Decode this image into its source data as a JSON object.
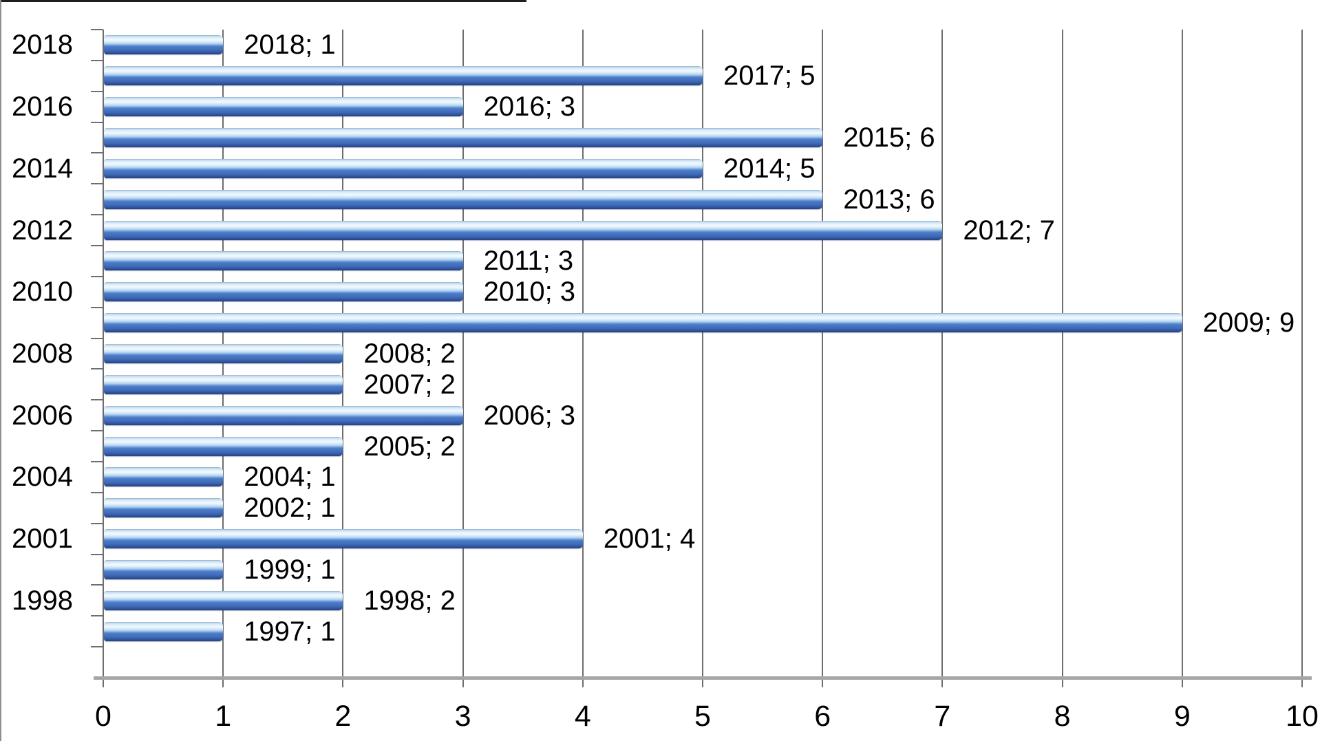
{
  "chart_data": {
    "type": "bar",
    "orientation": "horizontal",
    "title": "",
    "xlabel": "",
    "ylabel": "",
    "categories": [
      "2018",
      "2017",
      "2016",
      "2015",
      "2014",
      "2013",
      "2012",
      "2011",
      "2010",
      "2009",
      "2008",
      "2007",
      "2006",
      "2005",
      "2004",
      "2002",
      "2001",
      "1999",
      "1998",
      "1997"
    ],
    "values": [
      1,
      5,
      3,
      6,
      5,
      6,
      7,
      3,
      3,
      9,
      2,
      2,
      3,
      2,
      1,
      1,
      4,
      1,
      2,
      1
    ],
    "data_labels": [
      "2018; 1",
      "2017; 5",
      "2016; 3",
      "2015; 6",
      "2014; 5",
      "2013; 6",
      "2012; 7",
      "2011; 3",
      "2010; 3",
      "2009; 9",
      "2008; 2",
      "2007; 2",
      "2006; 3",
      "2005; 2",
      "2004; 1",
      "2002; 1",
      "2001; 4",
      "1999; 1",
      "1998; 2",
      "1997; 1"
    ],
    "y_axis_tick_labels": [
      "2018",
      "2016",
      "2014",
      "2012",
      "2010",
      "2008",
      "2006",
      "2004",
      "2001",
      "1998"
    ],
    "x_axis_tick_labels": [
      "0",
      "1",
      "2",
      "3",
      "4",
      "5",
      "6",
      "7",
      "8",
      "9",
      "10"
    ],
    "xlim": [
      0,
      10
    ],
    "empty_trailing_rows": 1,
    "grid": true,
    "legend": false,
    "colors": {
      "bar_main": "#4a7ac7",
      "bar_dark": "#253f7d",
      "bar_highlight": "#f1f9fe",
      "gridline": "#6e6e6e",
      "axis_line": "#a6a6a6",
      "text": "#000000"
    }
  }
}
